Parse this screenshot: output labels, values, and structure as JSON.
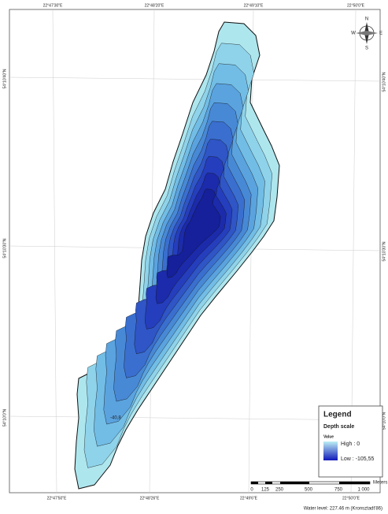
{
  "grid_labels": {
    "top": [
      "22°47'30\"E",
      "22°48'20\"E",
      "22°49'10\"E",
      "22°50'0\"E"
    ],
    "bottom": [
      "22°47'50\"E",
      "22°48'26\"E",
      "22°49'6\"E",
      "22°50'0\"E"
    ],
    "left": [
      "54°10'40\"N",
      "54°10'30\"N",
      "54°10'0\"N"
    ],
    "right": [
      "54°10'40\"N",
      "54°10'30\"N",
      "54°10'0\"N"
    ]
  },
  "compass": {
    "n": "N",
    "e": "E",
    "s": "S",
    "w": "W"
  },
  "contour_labels": [
    "-40,8"
  ],
  "legend": {
    "title": "Legend",
    "subtitle": "Depth scale",
    "field": "Value",
    "high": "High : 0",
    "low": "Low : -105,55"
  },
  "scale_bar": {
    "unit": "Meters",
    "labels": [
      "0",
      "125",
      "250",
      "500",
      "750",
      "1 000"
    ]
  },
  "footer": "Water level: 227.46 m (Kronsztadt'86)"
}
